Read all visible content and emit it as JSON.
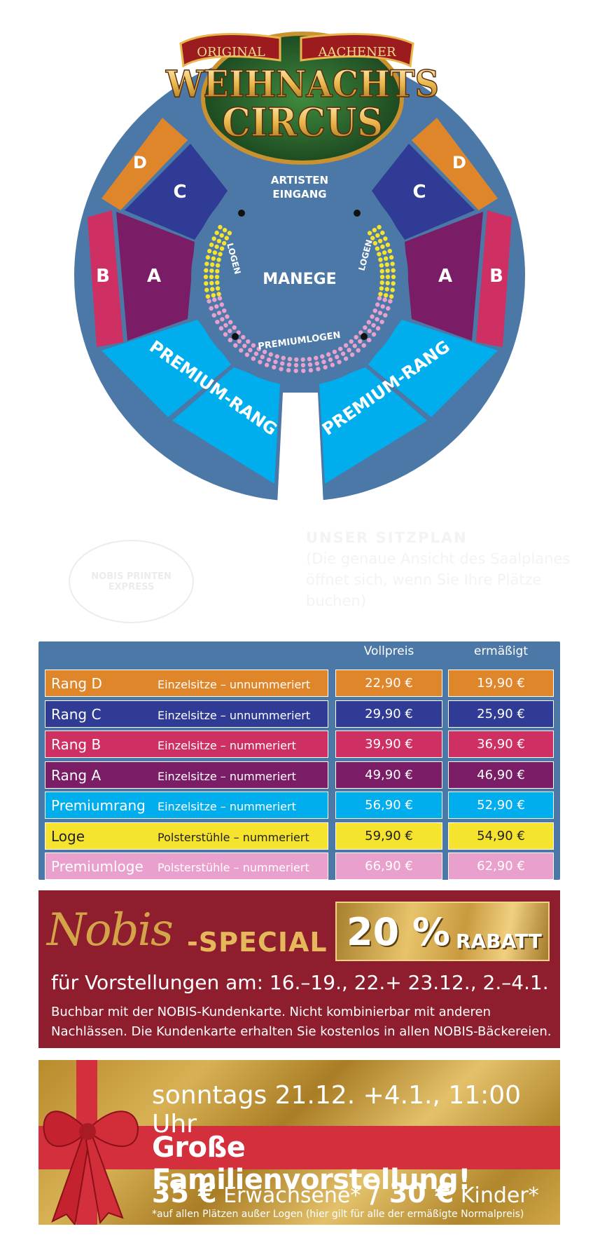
{
  "logo": {
    "line1_left": "ORIGINAL",
    "line1_right": "AACHENER",
    "line2": "WEIHNACHTS",
    "line3": "CIRCUS"
  },
  "seatmap": {
    "artists_entrance": [
      "ARTISTEN",
      "EINGANG"
    ],
    "arena": "MANEGE",
    "boxes": "LOGEN",
    "premium_boxes": "PREMIUMLOGEN",
    "section_d": "D",
    "section_c": "C",
    "section_b": "B",
    "section_a": "A",
    "premium_rank": "PREMIUM-RANG",
    "colors": {
      "ring_blue": "#4b78a6",
      "rang_d": "#e0862a",
      "rang_c": "#2f3b94",
      "rang_b": "#cf3064",
      "rang_a": "#7a1d66",
      "premium": "#00aeee",
      "loge": "#f5e32d",
      "premiumloge": "#e9a0cd"
    }
  },
  "notice": {
    "title": "UNSER SITZPLAN",
    "text": "(Die genaue Ansicht des Saalplanes öffnet sich, wenn Sie Ihre Plätze buchen)",
    "stamp": "NOBIS PRINTEN EXPRESS"
  },
  "prices": {
    "header_full": "Vollpreis",
    "header_reduced": "ermäßigt",
    "rows": [
      {
        "name": "Rang D",
        "desc": "Einzelsitze – unnummeriert",
        "full": "22,90 €",
        "reduced": "19,90 €",
        "bg": "#e0862a",
        "fg": "#ffffff"
      },
      {
        "name": "Rang C",
        "desc": "Einzelsitze – unnummeriert",
        "full": "29,90 €",
        "reduced": "25,90 €",
        "bg": "#2f3b94",
        "fg": "#ffffff"
      },
      {
        "name": "Rang B",
        "desc": "Einzelsitze – nummeriert",
        "full": "39,90 €",
        "reduced": "36,90 €",
        "bg": "#cf3064",
        "fg": "#ffffff"
      },
      {
        "name": "Rang A",
        "desc": "Einzelsitze – nummeriert",
        "full": "49,90 €",
        "reduced": "46,90 €",
        "bg": "#7a1d66",
        "fg": "#ffffff"
      },
      {
        "name": "Premiumrang",
        "desc": "Einzelsitze – nummeriert",
        "full": "56,90 €",
        "reduced": "52,90 €",
        "bg": "#00aeee",
        "fg": "#ffffff"
      },
      {
        "name": "Loge",
        "desc": "Polsterstühle – nummeriert",
        "full": "59,90 €",
        "reduced": "54,90 €",
        "bg": "#f5e32d",
        "fg": "#222222"
      },
      {
        "name": "Premiumloge",
        "desc": "Polsterstühle – nummeriert",
        "full": "66,90 €",
        "reduced": "62,90 €",
        "bg": "#e9a0cd",
        "fg": "#ffffff"
      }
    ]
  },
  "nobis": {
    "logo": "Nobis",
    "special": "-SPECIAL",
    "discount_pct": "20 %",
    "discount_word": "RABATT",
    "dates": "für Vorstellungen am: 16.–19., 22.+ 23.12., 2.–4.1.",
    "note": "Buchbar mit der NOBIS-Kundenkarte. Nicht kombinierbar mit anderen Nachlässen. Die Kundenkarte erhalten Sie kostenlos in allen NOBIS-Bäckereien."
  },
  "family": {
    "dates": "sonntags 21.12. +4.1., 11:00 Uhr",
    "title": "Große Familienvorstellung!",
    "adult_price": "35 €",
    "adult_label": "Erwachsene*",
    "separator": " / ",
    "child_price": "30 €",
    "child_label": "Kinder*",
    "footnote": "*auf allen Plätzen außer Logen (hier gilt für alle der ermäßigte Normalpreis)"
  }
}
